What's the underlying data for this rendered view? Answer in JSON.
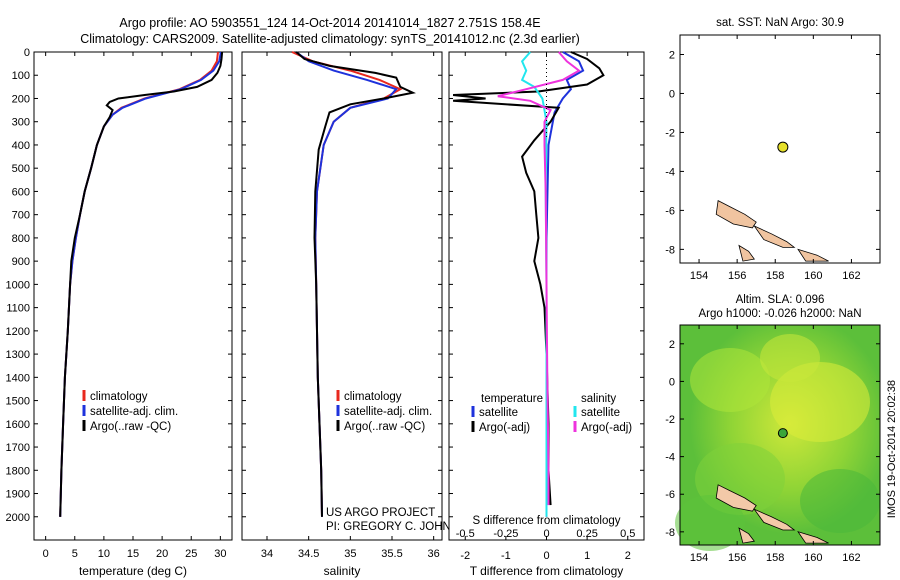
{
  "title_line1": "Argo profile: AO 5903551_124 14-Oct-2014 20141014_1827 2.751S 158.4E",
  "title_line2": "Climatology: CARS2009. Satellite-adjusted climatology: synTS_20141012.nc (2.3d earlier)",
  "timestamp": "IMOS 19-Oct-2014 20:02:38",
  "colors": {
    "clim": "#e8281e",
    "sat": "#1e32dc",
    "argo": "#000000",
    "cyan": "#22e6ee",
    "magenta": "#ee33dd"
  },
  "chart_data": [
    {
      "type": "line",
      "id": "temperature",
      "xlabel": "temperature (deg C)",
      "xlim": [
        -2,
        32
      ],
      "xticks": [
        0,
        5,
        10,
        15,
        20,
        25,
        30
      ],
      "ylim": [
        2100,
        0
      ],
      "yticks": [
        0,
        100,
        200,
        300,
        400,
        500,
        600,
        700,
        800,
        900,
        1000,
        1100,
        1200,
        1300,
        1400,
        1500,
        1600,
        1700,
        1800,
        1900,
        2000
      ],
      "legend": [
        "climatology",
        "satellite-adj. clim.",
        "Argo(..raw -QC)"
      ],
      "series": [
        {
          "name": "climatology",
          "color_key": "clim",
          "points": [
            [
              29.6,
              0
            ],
            [
              29.4,
              40
            ],
            [
              28.5,
              80
            ],
            [
              26.5,
              120
            ],
            [
              23,
              160
            ],
            [
              17,
              200
            ],
            [
              13,
              240
            ],
            [
              11.5,
              270
            ],
            [
              10,
              320
            ],
            [
              8.8,
              400
            ],
            [
              7.8,
              500
            ],
            [
              6.7,
              600
            ],
            [
              5.9,
              700
            ],
            [
              5.2,
              800
            ],
            [
              4.6,
              900
            ],
            [
              4.2,
              1000
            ],
            [
              3.8,
              1200
            ],
            [
              3.3,
              1400
            ],
            [
              3.0,
              1600
            ],
            [
              2.7,
              1800
            ],
            [
              2.5,
              2000
            ]
          ]
        },
        {
          "name": "satellite-adj. clim.",
          "color_key": "sat",
          "points": [
            [
              30.1,
              0
            ],
            [
              29.8,
              40
            ],
            [
              28.8,
              80
            ],
            [
              26.7,
              120
            ],
            [
              23.2,
              160
            ],
            [
              17.2,
              200
            ],
            [
              13.2,
              240
            ],
            [
              11.5,
              270
            ],
            [
              10,
              320
            ],
            [
              8.8,
              400
            ],
            [
              7.8,
              500
            ],
            [
              6.7,
              600
            ],
            [
              5.9,
              700
            ],
            [
              5.2,
              800
            ],
            [
              4.6,
              900
            ],
            [
              4.2,
              1000
            ],
            [
              3.8,
              1200
            ],
            [
              3.3,
              1400
            ],
            [
              3.0,
              1600
            ],
            [
              2.7,
              1800
            ],
            [
              2.5,
              2000
            ]
          ]
        },
        {
          "name": "Argo(..raw -QC)",
          "color_key": "argo",
          "points": [
            [
              30.3,
              0
            ],
            [
              30.2,
              30
            ],
            [
              30,
              60
            ],
            [
              29.5,
              90
            ],
            [
              28.5,
              120
            ],
            [
              26,
              150
            ],
            [
              22,
              170
            ],
            [
              17,
              185
            ],
            [
              12.5,
              200
            ],
            [
              11,
              215
            ],
            [
              10.5,
              230
            ],
            [
              11.5,
              250
            ],
            [
              11,
              280
            ],
            [
              10,
              320
            ],
            [
              8.8,
              400
            ],
            [
              7.8,
              500
            ],
            [
              6.7,
              600
            ],
            [
              5.9,
              700
            ],
            [
              5.0,
              800
            ],
            [
              4.4,
              900
            ],
            [
              4.2,
              1000
            ],
            [
              3.8,
              1200
            ],
            [
              3.3,
              1400
            ],
            [
              3.0,
              1600
            ],
            [
              2.7,
              1800
            ],
            [
              2.5,
              2000
            ]
          ]
        }
      ]
    },
    {
      "type": "line",
      "id": "salinity",
      "xlabel": "salinity",
      "xlim": [
        33.7,
        36.1
      ],
      "xticks": [
        34,
        34.5,
        35,
        35.5,
        36
      ],
      "ylim": [
        2100,
        0
      ],
      "legend": [
        "climatology",
        "satellite-adj. clim.",
        "Argo(..raw -QC)"
      ],
      "annotation": [
        "US ARGO PROJECT",
        "PI: GREGORY C. JOHNSON"
      ],
      "series": [
        {
          "name": "climatology",
          "color_key": "clim",
          "points": [
            [
              34.3,
              0
            ],
            [
              34.55,
              40
            ],
            [
              35.0,
              80
            ],
            [
              35.35,
              120
            ],
            [
              35.6,
              160
            ],
            [
              35.4,
              200
            ],
            [
              35.0,
              240
            ],
            [
              34.8,
              300
            ],
            [
              34.68,
              400
            ],
            [
              34.6,
              600
            ],
            [
              34.58,
              800
            ],
            [
              34.59,
              1000
            ],
            [
              34.6,
              1200
            ],
            [
              34.61,
              1400
            ],
            [
              34.63,
              1600
            ],
            [
              34.65,
              1800
            ],
            [
              34.66,
              2000
            ]
          ]
        },
        {
          "name": "satellite-adj. clim.",
          "color_key": "sat",
          "points": [
            [
              34.35,
              0
            ],
            [
              34.5,
              40
            ],
            [
              34.8,
              80
            ],
            [
              35.2,
              120
            ],
            [
              35.55,
              160
            ],
            [
              35.45,
              200
            ],
            [
              35.0,
              240
            ],
            [
              34.8,
              300
            ],
            [
              34.68,
              400
            ],
            [
              34.6,
              600
            ],
            [
              34.58,
              800
            ],
            [
              34.59,
              1000
            ],
            [
              34.6,
              1200
            ],
            [
              34.61,
              1400
            ],
            [
              34.63,
              1600
            ],
            [
              34.65,
              1800
            ],
            [
              34.66,
              2000
            ]
          ]
        },
        {
          "name": "Argo(..raw -QC)",
          "color_key": "argo",
          "points": [
            [
              34.35,
              0
            ],
            [
              34.45,
              30
            ],
            [
              34.75,
              60
            ],
            [
              35.3,
              90
            ],
            [
              35.55,
              110
            ],
            [
              35.6,
              150
            ],
            [
              35.75,
              175
            ],
            [
              35.4,
              200
            ],
            [
              35.0,
              225
            ],
            [
              34.75,
              260
            ],
            [
              34.7,
              320
            ],
            [
              34.62,
              420
            ],
            [
              34.58,
              600
            ],
            [
              34.57,
              800
            ],
            [
              34.59,
              1000
            ],
            [
              34.6,
              1200
            ],
            [
              34.61,
              1400
            ],
            [
              34.63,
              1600
            ],
            [
              34.65,
              1800
            ],
            [
              34.66,
              2000
            ]
          ]
        }
      ]
    },
    {
      "type": "line",
      "id": "differences",
      "xlabel_top": "S difference from climatology",
      "xlabel_bottom": "T difference from climatology",
      "xlim": [
        -2.4,
        2.4
      ],
      "xticks_top": [
        -0.5,
        -0.25,
        0,
        0.25,
        0.5
      ],
      "xticks_bottom": [
        -2,
        -1,
        0,
        1,
        2
      ],
      "ylim": [
        2100,
        0
      ],
      "legend_temperature": [
        "temperature",
        "satellite",
        "Argo(-adj)"
      ],
      "legend_salinity": [
        "salinity",
        "satellite",
        "Argo(-adj)"
      ],
      "series": [
        {
          "name": "temperature satellite",
          "color_key": "sat",
          "points": [
            [
              0.4,
              0
            ],
            [
              0.8,
              40
            ],
            [
              0.9,
              80
            ],
            [
              0.5,
              120
            ],
            [
              0.6,
              160
            ],
            [
              0.4,
              200
            ],
            [
              0.2,
              260
            ],
            [
              0.05,
              400
            ],
            [
              0.0,
              800
            ],
            [
              0.0,
              2000
            ]
          ]
        },
        {
          "name": "temperature Argo(-adj)",
          "color_key": "argo",
          "points": [
            [
              0.6,
              0
            ],
            [
              1.0,
              30
            ],
            [
              1.3,
              70
            ],
            [
              1.4,
              100
            ],
            [
              1.0,
              140
            ],
            [
              -0.2,
              170
            ],
            [
              -2.3,
              185
            ],
            [
              -1.5,
              200
            ],
            [
              -2.3,
              210
            ],
            [
              0.3,
              240
            ],
            [
              0.1,
              300
            ],
            [
              -0.3,
              380
            ],
            [
              -0.6,
              450
            ],
            [
              -0.5,
              520
            ],
            [
              -0.3,
              600
            ],
            [
              -0.25,
              700
            ],
            [
              -0.2,
              800
            ],
            [
              -0.3,
              900
            ],
            [
              -0.15,
              1000
            ],
            [
              -0.05,
              1100
            ],
            [
              0.0,
              1300
            ],
            [
              0.05,
              1600
            ],
            [
              0.05,
              1800
            ],
            [
              0.1,
              1950
            ]
          ]
        },
        {
          "name": "salinity satellite",
          "color_key": "cyan",
          "points": [
            [
              -0.4,
              0
            ],
            [
              -0.6,
              40
            ],
            [
              -0.5,
              80
            ],
            [
              -0.6,
              120
            ],
            [
              -0.3,
              150
            ],
            [
              -0.1,
              200
            ],
            [
              0.0,
              300
            ],
            [
              -0.02,
              600
            ],
            [
              0.0,
              1000
            ],
            [
              0.0,
              1500
            ],
            [
              0.0,
              2000
            ]
          ]
        },
        {
          "name": "salinity Argo(-adj)",
          "color_key": "magenta",
          "points": [
            [
              0.3,
              0
            ],
            [
              0.5,
              40
            ],
            [
              0.8,
              80
            ],
            [
              0.4,
              120
            ],
            [
              -0.5,
              160
            ],
            [
              -1.2,
              190
            ],
            [
              -0.4,
              210
            ],
            [
              0.1,
              250
            ],
            [
              -0.05,
              300
            ],
            [
              -0.05,
              400
            ],
            [
              -0.02,
              600
            ],
            [
              0.0,
              1000
            ],
            [
              0.02,
              1400
            ],
            [
              0.05,
              1800
            ],
            [
              0.05,
              1950
            ]
          ]
        }
      ]
    },
    {
      "type": "scatter",
      "id": "sst-map",
      "title": "sat. SST: NaN Argo: 30.9",
      "xlim": [
        153,
        163.5
      ],
      "ylim": [
        -8.7,
        3
      ],
      "xticks": [
        154,
        156,
        158,
        160,
        162
      ],
      "yticks": [
        2,
        0,
        -2,
        -4,
        -6,
        -8
      ],
      "marker": {
        "lon": 158.4,
        "lat": -2.751,
        "color": "#e6e02a"
      }
    },
    {
      "type": "heatmap",
      "id": "sla-map",
      "title": [
        "Altim. SLA: 0.096",
        "Argo h1000: -0.026 h2000: NaN"
      ],
      "xlim": [
        153,
        163.5
      ],
      "ylim": [
        -8.7,
        3
      ],
      "xticks": [
        154,
        156,
        158,
        160,
        162
      ],
      "yticks": [
        2,
        0,
        -2,
        -4,
        -6,
        -8
      ],
      "marker": {
        "lon": 158.4,
        "lat": -2.751,
        "color": "#3aa63a"
      }
    }
  ]
}
